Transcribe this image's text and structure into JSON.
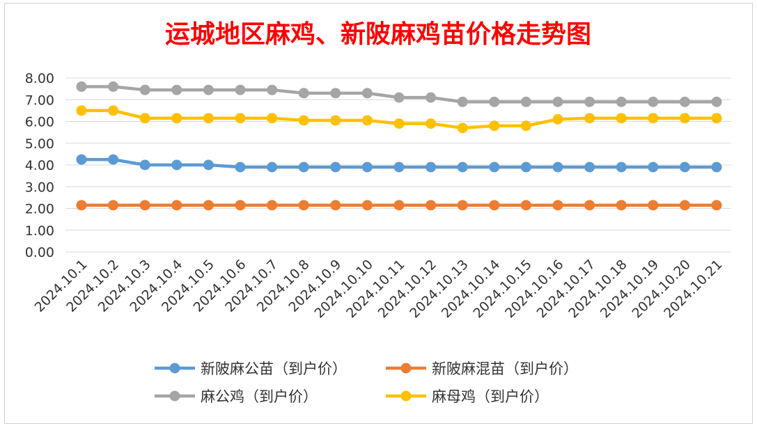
{
  "chart_data": {
    "type": "line",
    "title": "运城地区麻鸡、新陂麻鸡苗价格走势图",
    "title_color": "#ff0000",
    "xlabel": "",
    "ylabel": "",
    "ylim": [
      0,
      8
    ],
    "yticks": [
      "0.00",
      "1.00",
      "2.00",
      "3.00",
      "4.00",
      "5.00",
      "6.00",
      "7.00",
      "8.00"
    ],
    "grid": true,
    "legend_position": "bottom",
    "categories": [
      "2024.10.1",
      "2024.10.2",
      "2024.10.3",
      "2024.10.4",
      "2024.10.5",
      "2024.10.6",
      "2024.10.7",
      "2024.10.8",
      "2024.10.9",
      "2024.10.10",
      "2024.10.11",
      "2024.10.12",
      "2024.10.13",
      "2024.10.14",
      "2024.10.15",
      "2024.10.16",
      "2024.10.17",
      "2024.10.18",
      "2024.10.19",
      "2024.10.20",
      "2024.10.21"
    ],
    "series": [
      {
        "name": "新陂麻公苗（到户价）",
        "color": "#5b9bd5",
        "values": [
          4.25,
          4.25,
          4.0,
          4.0,
          4.0,
          3.9,
          3.9,
          3.9,
          3.9,
          3.9,
          3.9,
          3.9,
          3.9,
          3.9,
          3.9,
          3.9,
          3.9,
          3.9,
          3.9,
          3.9,
          3.9
        ]
      },
      {
        "name": "新陂麻混苗（到户价）",
        "color": "#ed7d31",
        "values": [
          2.15,
          2.15,
          2.15,
          2.15,
          2.15,
          2.15,
          2.15,
          2.15,
          2.15,
          2.15,
          2.15,
          2.15,
          2.15,
          2.15,
          2.15,
          2.15,
          2.15,
          2.15,
          2.15,
          2.15,
          2.15
        ]
      },
      {
        "name": "麻公鸡（到户价）",
        "color": "#a5a5a5",
        "values": [
          7.6,
          7.6,
          7.45,
          7.45,
          7.45,
          7.45,
          7.45,
          7.3,
          7.3,
          7.3,
          7.1,
          7.1,
          6.9,
          6.9,
          6.9,
          6.9,
          6.9,
          6.9,
          6.9,
          6.9,
          6.9
        ]
      },
      {
        "name": "麻母鸡（到户价）",
        "color": "#ffc000",
        "values": [
          6.5,
          6.5,
          6.15,
          6.15,
          6.15,
          6.15,
          6.15,
          6.05,
          6.05,
          6.05,
          5.9,
          5.9,
          5.7,
          5.8,
          5.8,
          6.1,
          6.15,
          6.15,
          6.15,
          6.15,
          6.15
        ]
      }
    ]
  }
}
